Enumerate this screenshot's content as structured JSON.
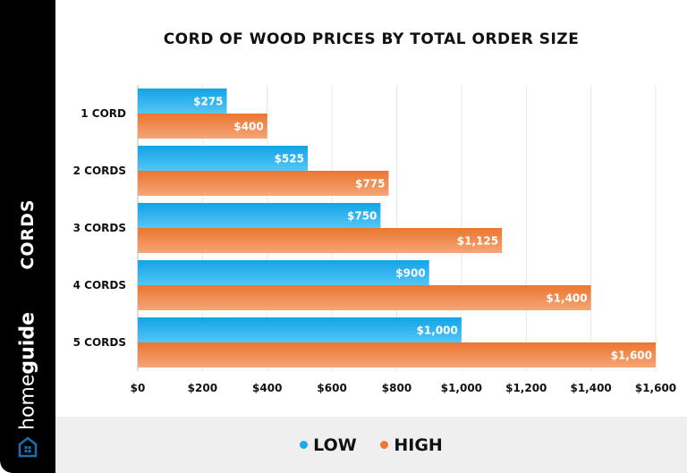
{
  "sidebar": {
    "label": "CORDS",
    "brand_light": "home",
    "brand_bold": "guide",
    "brand_text": "homeguide"
  },
  "chart_data": {
    "type": "bar",
    "orientation": "horizontal",
    "title": "CORD OF WOOD PRICES BY TOTAL ORDER SIZE",
    "categories": [
      "1 CORD",
      "2 CORDS",
      "3 CORDS",
      "4 CORDS",
      "5 CORDS"
    ],
    "series": [
      {
        "name": "LOW",
        "values": [
          275,
          525,
          750,
          900,
          1000
        ],
        "labels": [
          "$275",
          "$525",
          "$750",
          "$900",
          "$1,000"
        ],
        "color": "#1aa9ea"
      },
      {
        "name": "HIGH",
        "values": [
          400,
          775,
          1125,
          1400,
          1600
        ],
        "labels": [
          "$400",
          "$775",
          "$1,125",
          "$1,400",
          "$1,600"
        ],
        "color": "#ec7a35"
      }
    ],
    "xlim": [
      0,
      1600
    ],
    "ticks": [
      0,
      200,
      400,
      600,
      800,
      1000,
      1200,
      1400,
      1600
    ],
    "tick_labels": [
      "$0",
      "$200",
      "$400",
      "$600",
      "$800",
      "$1,000",
      "$1,200",
      "$1,400",
      "$1,600"
    ],
    "grid": true,
    "legend": "bottom"
  }
}
